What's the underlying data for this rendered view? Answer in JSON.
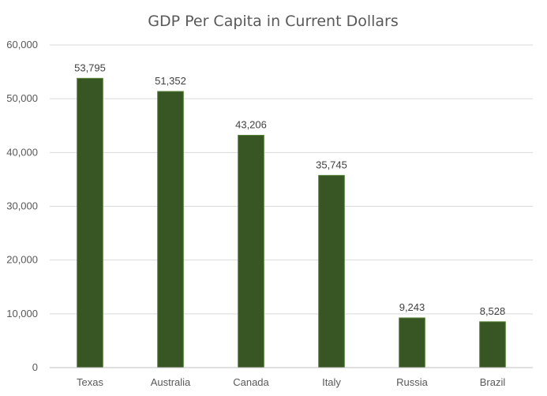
{
  "chart_data": {
    "type": "bar",
    "title": "GDP Per Capita in Current Dollars",
    "categories": [
      "Texas",
      "Australia",
      "Canada",
      "Italy",
      "Russia",
      "Brazil"
    ],
    "values": [
      53795,
      51352,
      43206,
      35745,
      9243,
      8528
    ],
    "data_labels": [
      "53,795",
      "51,352",
      "43,206",
      "35,745",
      "9,243",
      "8,528"
    ],
    "yticks": [
      "0",
      "10,000",
      "20,000",
      "30,000",
      "40,000",
      "50,000",
      "60,000"
    ],
    "ylim": [
      0,
      60000
    ],
    "xlabel": "",
    "ylabel": "",
    "grid": true,
    "legend": "none",
    "bar_color": "#375623",
    "bar_edge_color": "#548235"
  }
}
